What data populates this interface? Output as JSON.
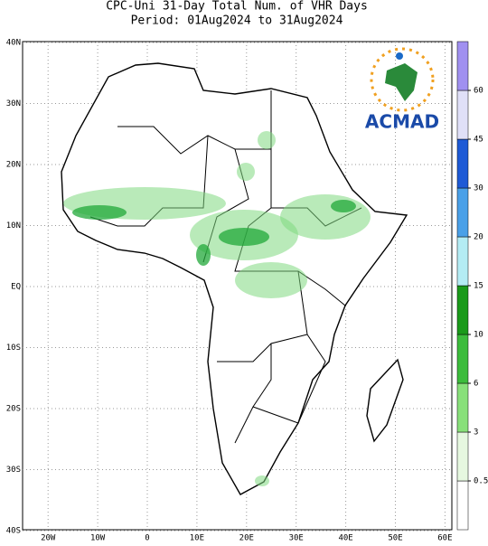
{
  "title": "CPC-Uni 31-Day Total Num. of VHR Days",
  "subtitle": "Period: 01Aug2024 to 31Aug2024",
  "logo": "ACMAD",
  "map": {
    "lat_ticks": [
      {
        "value": 40,
        "label": "40N"
      },
      {
        "value": 30,
        "label": "30N"
      },
      {
        "value": 20,
        "label": "20N"
      },
      {
        "value": 10,
        "label": "10N"
      },
      {
        "value": 0,
        "label": "EQ"
      },
      {
        "value": -10,
        "label": "10S"
      },
      {
        "value": -20,
        "label": "20S"
      },
      {
        "value": -30,
        "label": "30S"
      },
      {
        "value": -40,
        "label": "40S"
      }
    ],
    "lon_ticks": [
      {
        "value": -20,
        "label": "20W"
      },
      {
        "value": -10,
        "label": "10W"
      },
      {
        "value": 0,
        "label": "0"
      },
      {
        "value": 10,
        "label": "10E"
      },
      {
        "value": 20,
        "label": "20E"
      },
      {
        "value": 30,
        "label": "30E"
      },
      {
        "value": 40,
        "label": "40E"
      },
      {
        "value": 50,
        "label": "50E"
      },
      {
        "value": 60,
        "label": "60E"
      }
    ]
  },
  "colorbar": {
    "levels": [
      0.5,
      3,
      6,
      10,
      15,
      20,
      30,
      45,
      60
    ],
    "colors": [
      "#ffffff",
      "#e6f8e0",
      "#88e07a",
      "#3cbc3c",
      "#1a9a1a",
      "#b4ecf4",
      "#4aa0e8",
      "#1e5ad6",
      "#e0e0f8",
      "#a090f0",
      "#6a50d8"
    ]
  }
}
